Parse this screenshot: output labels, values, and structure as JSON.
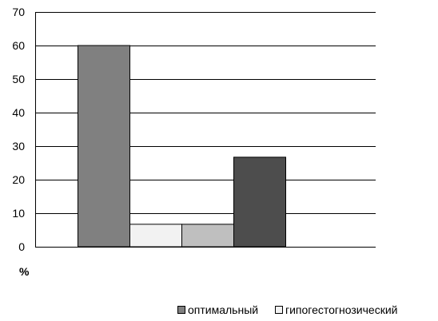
{
  "chart_data": {
    "type": "bar",
    "unit_label": "%",
    "ylim": [
      0,
      70
    ],
    "yticks": [
      0,
      10,
      20,
      30,
      40,
      50,
      60,
      70
    ],
    "grid": true,
    "legend_position": "bottom-right",
    "series": [
      {
        "name": "оптимальный",
        "value": 60,
        "color": "#808080"
      },
      {
        "name": "гипогестогнозический",
        "value": 6.7,
        "color": "#f2f2f2"
      },
      {
        "name": "",
        "value": 6.7,
        "color": "#bfbfbf"
      },
      {
        "name": "",
        "value": 26.7,
        "color": "#4d4d4d"
      }
    ],
    "legend": [
      {
        "label": "оптимальный",
        "color": "#808080"
      },
      {
        "label": "гипогестогнозический",
        "color": "#f2f2f2"
      }
    ]
  }
}
